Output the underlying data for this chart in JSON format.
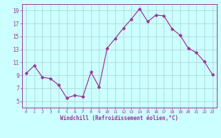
{
  "x": [
    0,
    1,
    2,
    3,
    4,
    5,
    6,
    7,
    8,
    9,
    10,
    11,
    12,
    13,
    14,
    15,
    16,
    17,
    18,
    19,
    20,
    21,
    22,
    23
  ],
  "y": [
    9.3,
    10.5,
    8.7,
    8.5,
    7.5,
    5.5,
    5.9,
    5.7,
    9.5,
    7.2,
    13.2,
    14.7,
    16.3,
    17.7,
    19.3,
    17.3,
    18.3,
    18.2,
    16.2,
    15.2,
    13.2,
    12.5,
    11.1,
    9.1
  ],
  "line_color": "#993399",
  "marker": "D",
  "marker_size": 2.5,
  "bg_color": "#ccffff",
  "grid_color": "#aacccc",
  "axis_color": "#993399",
  "tick_color": "#993399",
  "xlabel": "Windchill (Refroidissement éolien,°C)",
  "ylim": [
    4,
    20
  ],
  "xlim": [
    -0.5,
    23.5
  ],
  "yticks": [
    5,
    7,
    9,
    11,
    13,
    15,
    17,
    19
  ],
  "xticks": [
    0,
    1,
    2,
    3,
    4,
    5,
    6,
    7,
    8,
    9,
    10,
    11,
    12,
    13,
    14,
    15,
    16,
    17,
    18,
    19,
    20,
    21,
    22,
    23
  ]
}
